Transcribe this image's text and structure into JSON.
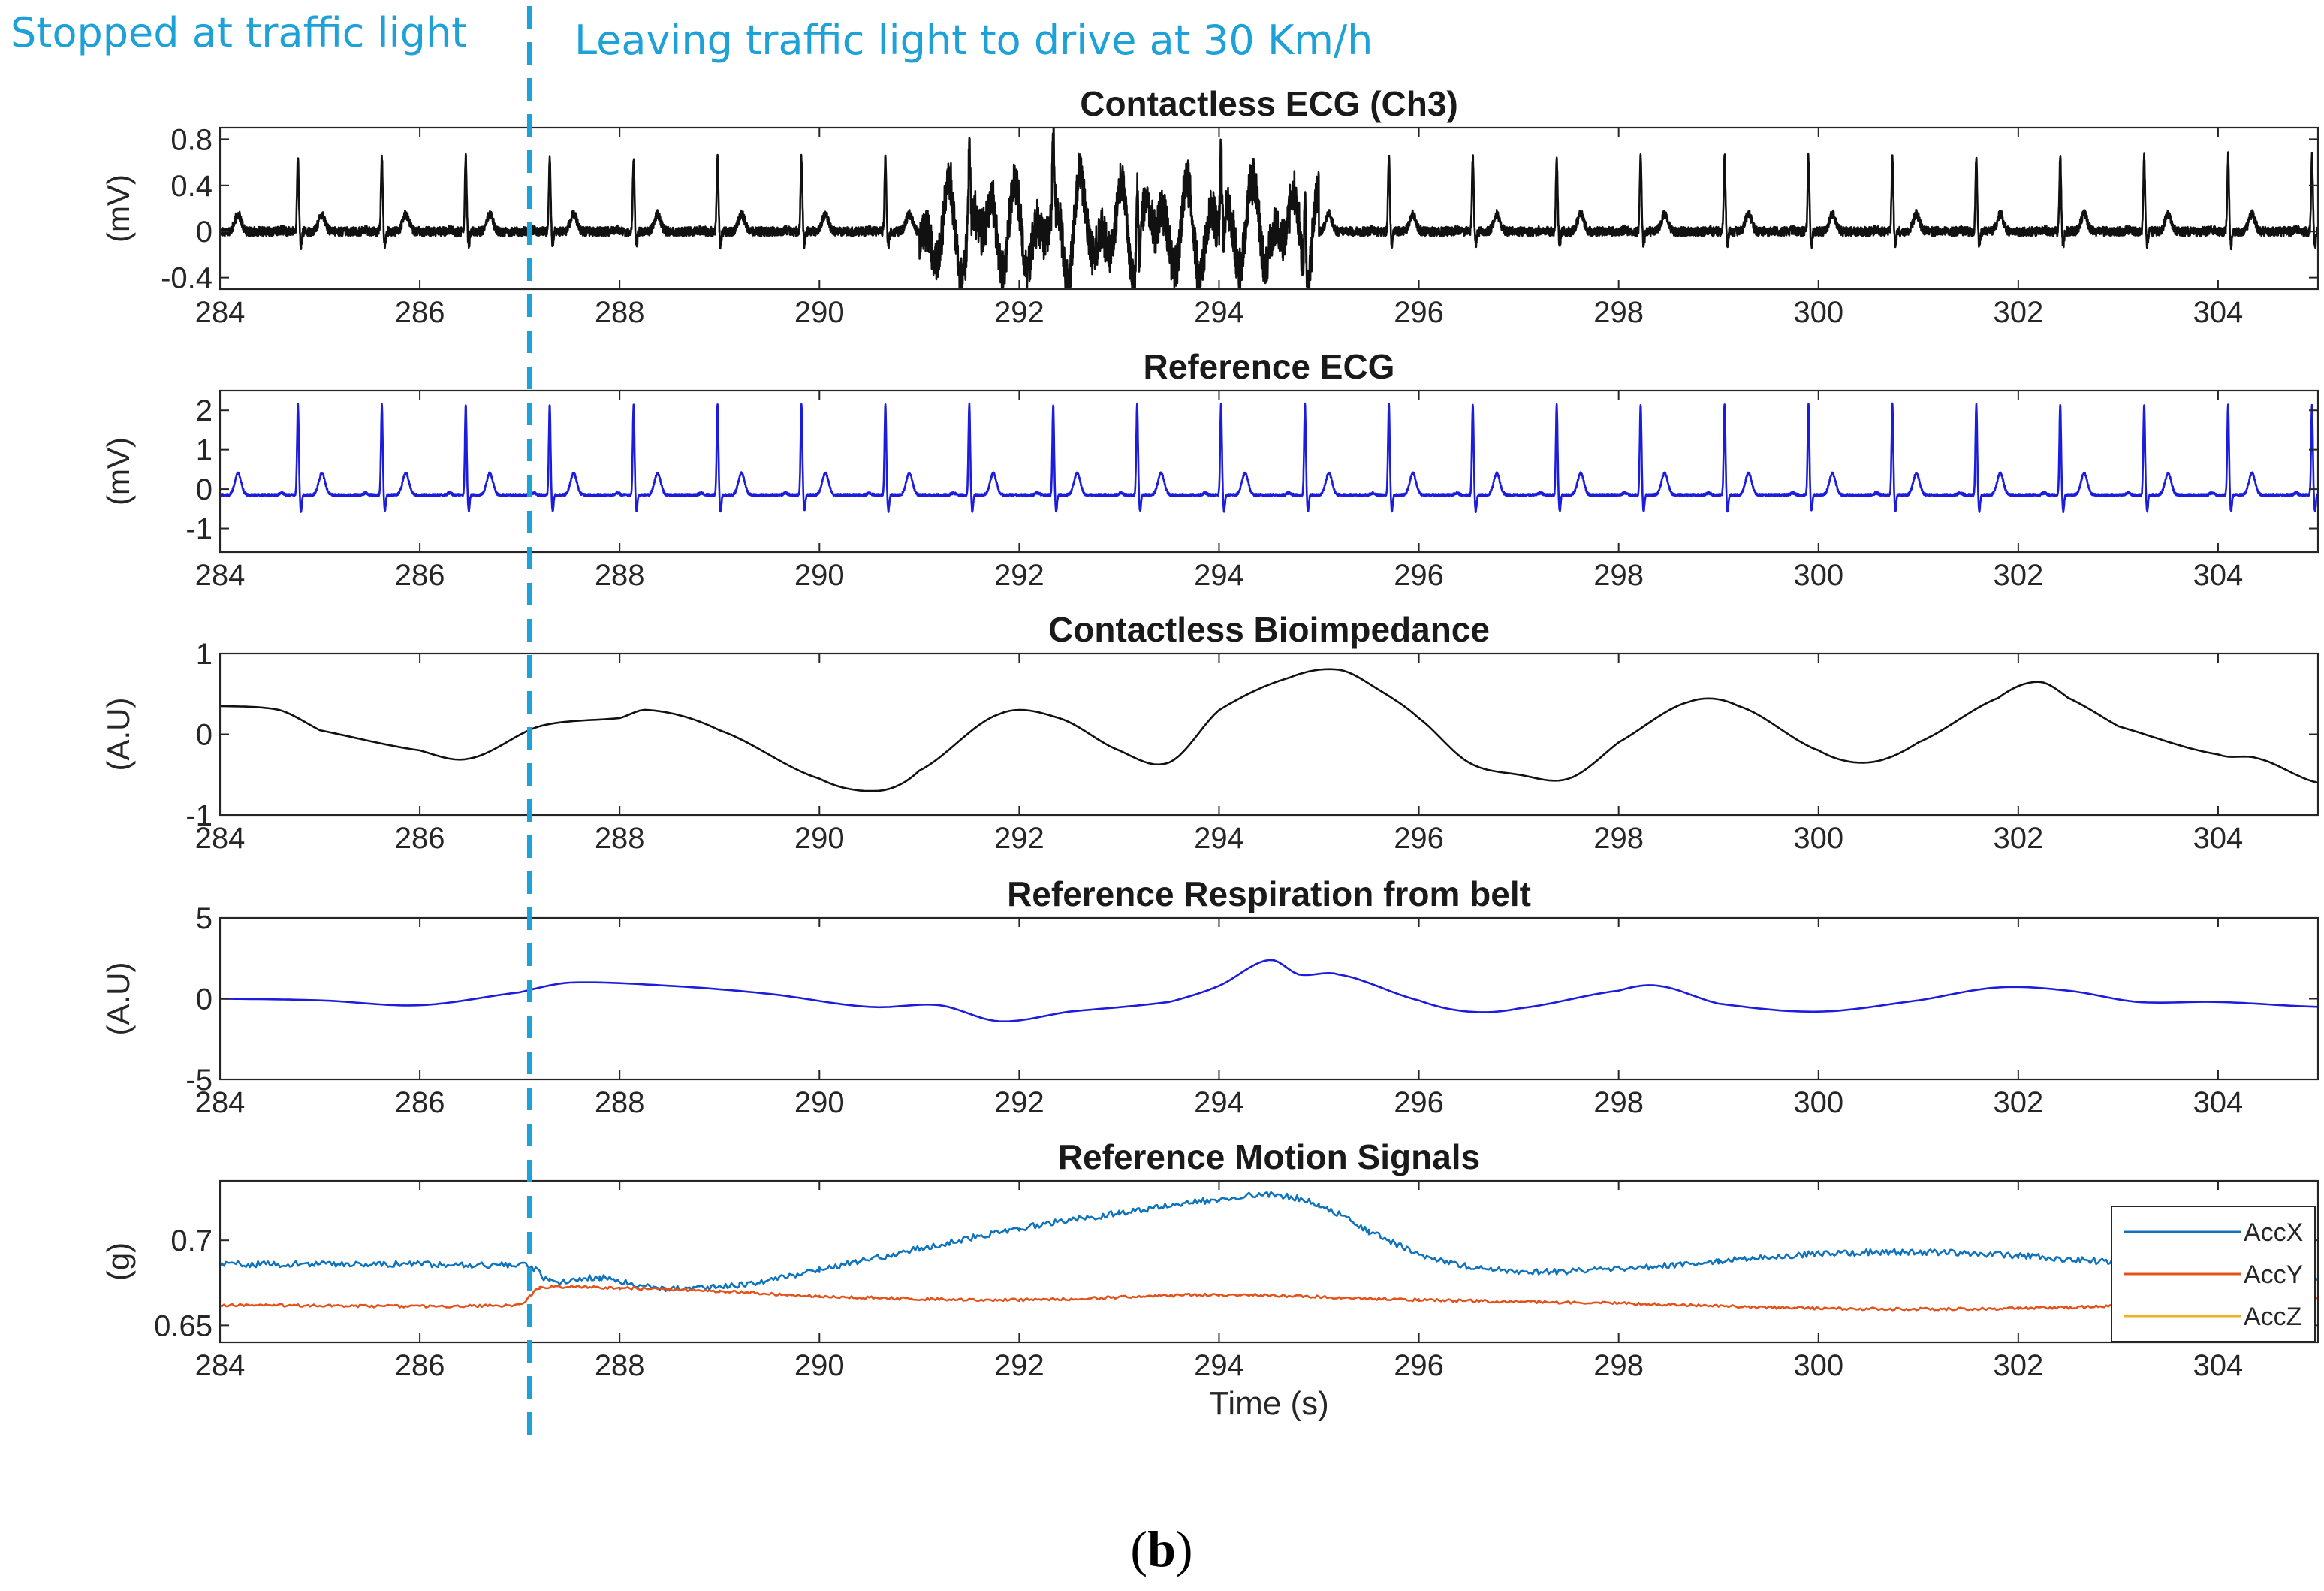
{
  "annotations": {
    "left": "Stopped at traffic light",
    "right": "Leaving traffic light to drive at 30 Km/h",
    "event_time": 287.1,
    "line_color": "#1ea1d6"
  },
  "caption": {
    "open": "(",
    "letter": "b",
    "close": ")"
  },
  "chart_data": [
    {
      "id": "contactless-ecg",
      "type": "line",
      "title": "Contactless ECG (Ch3)",
      "ylabel": "(mV)",
      "xlabel": "",
      "xlim": [
        284,
        305
      ],
      "ylim": [
        -0.5,
        0.9
      ],
      "xticks": [
        "284",
        "286",
        "288",
        "290",
        "292",
        "294",
        "296",
        "298",
        "300",
        "302",
        "304"
      ],
      "yticks": [
        {
          "v": 0.8,
          "label": "0.8"
        },
        {
          "v": 0.4,
          "label": "0.4"
        },
        {
          "v": 0,
          "label": "0"
        },
        {
          "v": -0.4,
          "label": "-0.4"
        }
      ],
      "series": [
        {
          "name": "Contactless ECG",
          "color": "#111111",
          "signal": "ecg",
          "fs": 25,
          "rr": 0.84,
          "t0": 284.78,
          "amp": 0.65,
          "twave": 0.15,
          "base": 0,
          "noise": 0.04,
          "noise_region": [
            291,
            295
          ],
          "noise_amp": 0.45
        }
      ]
    },
    {
      "id": "reference-ecg",
      "type": "line",
      "title": "Reference ECG",
      "ylabel": "(mV)",
      "xlabel": "",
      "xlim": [
        284,
        305
      ],
      "ylim": [
        -1.6,
        2.5
      ],
      "xticks": [
        "284",
        "286",
        "288",
        "290",
        "292",
        "294",
        "296",
        "298",
        "300",
        "302",
        "304"
      ],
      "yticks": [
        {
          "v": 2,
          "label": "2"
        },
        {
          "v": 1,
          "label": "1"
        },
        {
          "v": 0,
          "label": "0"
        },
        {
          "v": -1,
          "label": "-1"
        }
      ],
      "series": [
        {
          "name": "Reference ECG",
          "color": "#1c1cdc",
          "signal": "ecg",
          "fs": 25,
          "rr": 0.84,
          "t0": 284.78,
          "amp": 2.3,
          "twave": 0.55,
          "base": -0.15,
          "noise": 0.03
        }
      ]
    },
    {
      "id": "contactless-bioimpedance",
      "type": "line",
      "title": "Contactless Bioimpedance",
      "ylabel": "(A.U)",
      "xlabel": "",
      "xlim": [
        284,
        305
      ],
      "ylim": [
        -1,
        1
      ],
      "xticks": [
        "284",
        "286",
        "288",
        "290",
        "292",
        "294",
        "296",
        "298",
        "300",
        "302",
        "304"
      ],
      "yticks": [
        {
          "v": 1,
          "label": "1"
        },
        {
          "v": 0,
          "label": "0"
        },
        {
          "v": -1,
          "label": "-1"
        }
      ],
      "series": [
        {
          "name": "Bioimpedance",
          "color": "#111111",
          "signal": "points",
          "x": [
            284,
            284.6,
            285,
            286,
            286.5,
            287.2,
            288,
            288.3,
            289,
            290,
            290.6,
            291,
            291.8,
            292.4,
            293,
            293.5,
            294,
            294.7,
            295.2,
            295.6,
            296,
            296.5,
            297,
            297.5,
            298,
            298.7,
            299.2,
            300,
            300.5,
            301,
            301.8,
            302.2,
            302.5,
            303,
            304,
            304.4,
            305
          ],
          "y": [
            0.35,
            0.3,
            0.05,
            -0.2,
            -0.3,
            0.1,
            0.2,
            0.3,
            0.05,
            -0.55,
            -0.7,
            -0.45,
            0.25,
            0.2,
            -0.2,
            -0.35,
            0.3,
            0.7,
            0.8,
            0.55,
            0.2,
            -0.35,
            -0.5,
            -0.55,
            -0.1,
            0.4,
            0.35,
            -0.2,
            -0.35,
            -0.1,
            0.45,
            0.65,
            0.45,
            0.1,
            -0.25,
            -0.3,
            -0.6
          ]
        }
      ]
    },
    {
      "id": "reference-respiration",
      "type": "line",
      "title": "Reference Respiration from belt",
      "ylabel": "(A.U)",
      "xlabel": "",
      "xlim": [
        284,
        305
      ],
      "ylim": [
        -5,
        5
      ],
      "xticks": [
        "284",
        "286",
        "288",
        "290",
        "292",
        "294",
        "296",
        "298",
        "300",
        "302",
        "304"
      ],
      "yticks": [
        {
          "v": 5,
          "label": "5"
        },
        {
          "v": 0,
          "label": "0"
        },
        {
          "v": -5,
          "label": "-5"
        }
      ],
      "series": [
        {
          "name": "Respiration",
          "color": "#1c1cdc",
          "signal": "points",
          "x": [
            284,
            285,
            286,
            287,
            287.5,
            288.5,
            289.5,
            290.5,
            291.2,
            291.8,
            292.5,
            293.5,
            294,
            294.5,
            294.8,
            295.2,
            296,
            296.5,
            297,
            298,
            298.4,
            299,
            300,
            301,
            301.8,
            302.5,
            303.2,
            304,
            305
          ],
          "y": [
            0,
            -0.1,
            -0.4,
            0.4,
            1.0,
            0.8,
            0.3,
            -0.5,
            -0.4,
            -1.4,
            -0.8,
            -0.2,
            0.8,
            2.4,
            1.5,
            1.5,
            -0.1,
            -0.8,
            -0.6,
            0.5,
            0.8,
            -0.3,
            -0.8,
            -0.1,
            0.7,
            0.5,
            -0.2,
            -0.2,
            -0.5
          ]
        }
      ]
    },
    {
      "id": "reference-motion",
      "type": "line",
      "title": "Reference Motion Signals",
      "ylabel": "(g)",
      "xlabel": "Time (s)",
      "xlim": [
        284,
        305
      ],
      "ylim": [
        0.64,
        0.735
      ],
      "xticks": [
        "284",
        "286",
        "288",
        "290",
        "292",
        "294",
        "296",
        "298",
        "300",
        "302",
        "304"
      ],
      "yticks": [
        {
          "v": 0.7,
          "label": "0.7"
        },
        {
          "v": 0.65,
          "label": "0.65"
        }
      ],
      "legend": "top-right",
      "series": [
        {
          "name": "AccX",
          "color": "#0e72bd",
          "signal": "points",
          "noisy": true,
          "noise": 0.0018,
          "x": [
            284,
            287.1,
            287.3,
            287.8,
            288.4,
            289.2,
            290,
            291,
            292,
            293,
            294,
            294.5,
            295,
            295.5,
            296.2,
            297,
            298,
            299,
            300,
            301,
            302,
            303,
            304,
            304.6,
            305
          ],
          "y": [
            0.686,
            0.685,
            0.676,
            0.678,
            0.672,
            0.674,
            0.683,
            0.695,
            0.707,
            0.716,
            0.724,
            0.727,
            0.721,
            0.705,
            0.688,
            0.682,
            0.683,
            0.688,
            0.692,
            0.693,
            0.691,
            0.687,
            0.686,
            0.684,
            0.678
          ]
        },
        {
          "name": "AccY",
          "color": "#e4521c",
          "signal": "points",
          "noisy": true,
          "noise": 0.0008,
          "x": [
            284,
            287.0,
            287.2,
            288,
            289,
            290,
            292,
            294,
            296,
            298,
            300,
            302,
            304,
            305
          ],
          "y": [
            0.662,
            0.662,
            0.672,
            0.672,
            0.67,
            0.667,
            0.665,
            0.668,
            0.665,
            0.663,
            0.66,
            0.66,
            0.663,
            0.666
          ]
        },
        {
          "name": "AccZ",
          "color": "#f2b01e",
          "signal": "none"
        }
      ]
    }
  ]
}
